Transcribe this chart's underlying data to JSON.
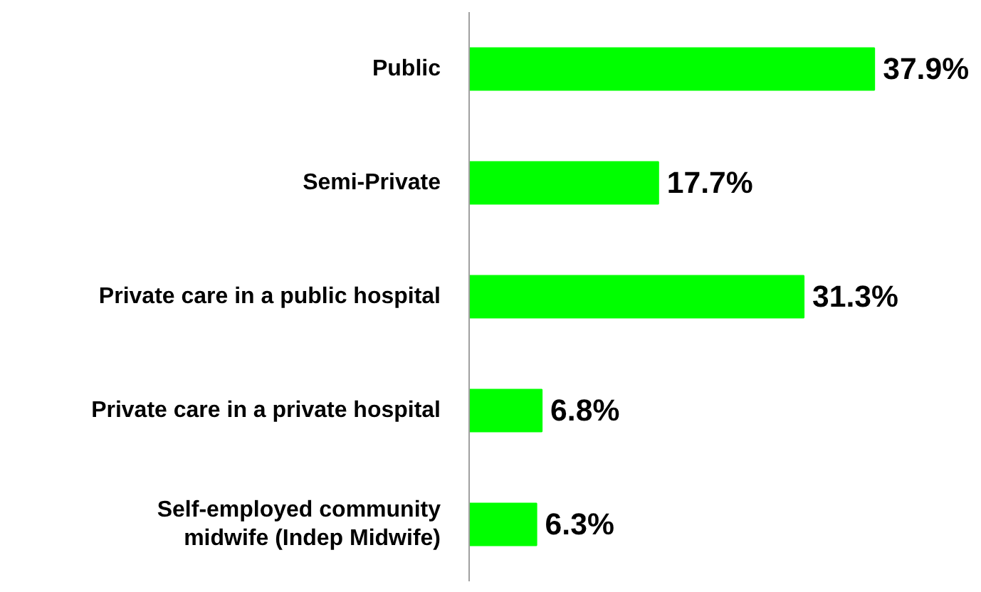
{
  "chart_data": {
    "type": "bar",
    "orientation": "horizontal",
    "categories": [
      "Public",
      "Semi-Private",
      "Private care in a public hospital",
      "Private care in a private hospital",
      "Self-employed community\nmidwife (Indep Midwife)"
    ],
    "values": [
      37.9,
      17.7,
      31.3,
      6.8,
      6.3
    ],
    "value_labels": [
      "37.9%",
      "17.7%",
      "31.3%",
      "6.8%",
      "6.3%"
    ],
    "color": "#00ff00",
    "grid": false,
    "tick_labels": "y"
  }
}
